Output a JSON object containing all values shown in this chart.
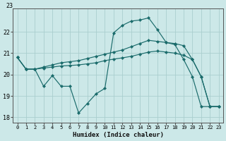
{
  "background_color": "#cce8e8",
  "grid_color": "#aacece",
  "line_color": "#1a6b6b",
  "xlabel": "Humidex (Indice chaleur)",
  "xlim": [
    -0.5,
    23.5
  ],
  "ylim": [
    17.75,
    23.1
  ],
  "yticks": [
    18,
    19,
    20,
    21,
    22
  ],
  "ytop_label": "23",
  "line1_x": [
    0,
    1,
    2,
    3,
    4,
    5,
    6,
    7,
    8,
    9,
    10,
    11,
    12,
    13,
    14,
    15,
    16,
    17,
    18,
    19,
    20,
    21,
    22,
    23
  ],
  "line1_y": [
    20.8,
    20.25,
    20.25,
    19.45,
    19.95,
    19.45,
    19.45,
    18.2,
    18.65,
    19.1,
    19.35,
    21.95,
    22.3,
    22.5,
    22.55,
    22.65,
    22.1,
    21.5,
    21.4,
    20.7,
    19.9,
    18.5,
    18.5,
    18.5
  ],
  "line2_x": [
    0,
    1,
    2,
    3,
    4,
    5,
    6,
    7,
    8,
    9,
    10,
    11,
    12,
    13,
    14,
    15,
    16,
    17,
    18,
    19,
    20,
    21,
    22,
    23
  ],
  "line2_y": [
    20.8,
    20.25,
    20.25,
    20.35,
    20.45,
    20.55,
    20.6,
    20.65,
    20.75,
    20.85,
    20.95,
    21.05,
    21.15,
    21.3,
    21.45,
    21.6,
    21.55,
    21.5,
    21.45,
    21.35,
    20.7,
    19.9,
    18.5,
    18.5
  ],
  "line3_x": [
    0,
    1,
    2,
    3,
    4,
    5,
    6,
    7,
    8,
    9,
    10,
    11,
    12,
    13,
    14,
    15,
    16,
    17,
    18,
    19,
    20,
    21,
    22,
    23
  ],
  "line3_y": [
    20.8,
    20.25,
    20.25,
    20.3,
    20.35,
    20.4,
    20.42,
    20.45,
    20.5,
    20.55,
    20.65,
    20.72,
    20.78,
    20.85,
    20.95,
    21.05,
    21.1,
    21.05,
    21.0,
    20.9,
    20.7,
    19.9,
    18.5,
    18.5
  ]
}
